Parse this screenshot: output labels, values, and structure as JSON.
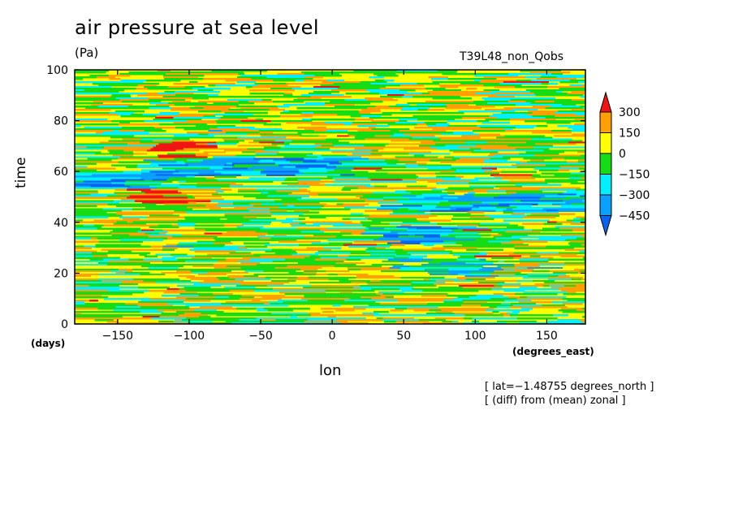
{
  "chart_data": {
    "type": "heatmap",
    "title": "air pressure at sea level",
    "units": "(Pa)",
    "run_label": "T39L48_non_Qobs",
    "xlabel": "lon",
    "x_unit": "(degrees_east)",
    "ylabel": "time",
    "y_unit": "(days)",
    "xlim": [
      -180,
      177
    ],
    "ylim": [
      0,
      100
    ],
    "x_ticks": [
      -150,
      -100,
      -50,
      0,
      50,
      100,
      150
    ],
    "y_ticks": [
      0,
      20,
      40,
      60,
      80,
      100
    ],
    "colorbar": {
      "levels": [
        -450,
        -300,
        -150,
        0,
        150,
        300
      ],
      "labels": [
        "300",
        "150",
        "0",
        "−150",
        "−300",
        "−450"
      ],
      "colors": [
        "#0a64f0",
        "#0aa0ff",
        "#00f0ff",
        "#16dc16",
        "#ffff00",
        "#ffa000",
        "#f01414"
      ]
    },
    "anomaly_bands": [
      {
        "time": 68,
        "lon": [
          -130,
          -90
        ],
        "level": "red"
      },
      {
        "time": 62,
        "lon": [
          -140,
          10
        ],
        "level": "blue"
      },
      {
        "time": 57,
        "lon": [
          -180,
          -120
        ],
        "level": "blue"
      },
      {
        "time": 50,
        "lon": [
          -150,
          -90
        ],
        "level": "red"
      },
      {
        "time": 48,
        "lon": [
          30,
          177
        ],
        "level": "blue"
      },
      {
        "time": 35,
        "lon": [
          20,
          90
        ],
        "level": "blue"
      },
      {
        "time": 22,
        "lon": [
          30,
          110
        ],
        "level": "cyan"
      }
    ],
    "notes": [
      "[ lat=−1.48755 degrees_north ]",
      "[ (diff) from (mean) zonal ]"
    ]
  }
}
